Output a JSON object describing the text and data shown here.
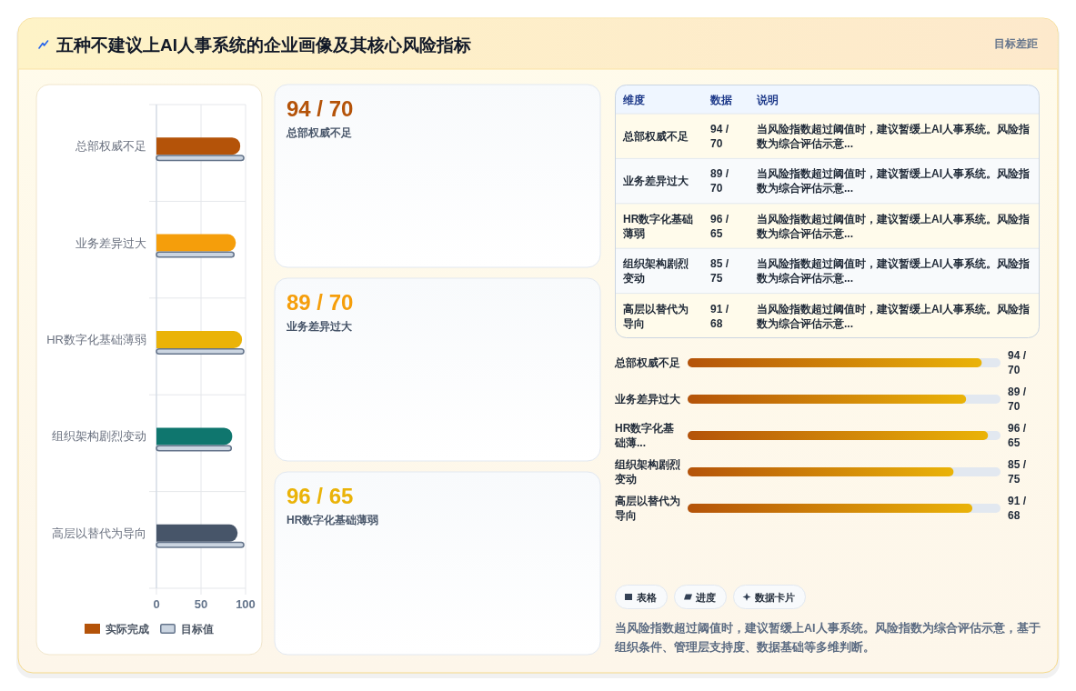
{
  "chart_data": [
    {
      "type": "other",
      "title": "五种不建议上AI人事系统的企业画像及其核心风险指标",
      "subtitle": "目标差距"
    },
    {
      "type": "bar",
      "orientation": "horizontal",
      "categories": [
        "总部权威不足",
        "业务差异过大",
        "HR数字化基础薄弱",
        "组织架构剧烈变动",
        "高层以替代为导向"
      ],
      "series": [
        {
          "name": "实际完成",
          "colors": [
            "#b45309",
            "#f59e0b",
            "#eab308",
            "#0f766e",
            "#475569"
          ],
          "values": [
            94,
            89,
            96,
            85,
            91
          ]
        },
        {
          "name": "目标值",
          "color": "#cbd5e1",
          "values": [
            98,
            87,
            98,
            84,
            98
          ]
        }
      ],
      "xlim": [
        0,
        100
      ],
      "xticks": [
        0,
        50,
        100
      ],
      "grid": true,
      "legend": "bottom"
    },
    {
      "type": "other",
      "categories": [
        "总部权威不足",
        "业务差异过大",
        "HR数字化基础薄弱"
      ],
      "value_labels": [
        "94 / 70",
        "89 / 70",
        "96 / 65"
      ]
    },
    {
      "type": "other",
      "categories": [
        "总部权威不足",
        "业务差异过大",
        "HR数字化基础薄弱",
        "组织架构剧烈变动",
        "高层以替代为导向"
      ],
      "value_labels": [
        "94 / 70",
        "89 / 70",
        "96 / 65",
        "85 / 75",
        "91 / 68"
      ],
      "annotations": [
        "维度",
        "数据",
        "说明",
        "当风险指数超过阈值时，建议暂缓上AI人事系统。风险指数为综合评估示意...",
        "当风险指数超过阈值时，建议暂缓上AI人事系统。风险指数为综合评估示意...",
        "当风险指数超过阈值时，建议暂缓上AI人事系统。风险指数为综合评估示意...",
        "当风险指数超过阈值时，建议暂缓上AI人事系统。风险指数为综合评估示意...",
        "当风险指数超过阈值时，建议暂缓上AI人事系统。风险指数为综合评估示意..."
      ]
    },
    {
      "type": "bar",
      "orientation": "horizontal",
      "categories": [
        "总部权威不足",
        "业务差异过大",
        "HR数字化基础薄...",
        "组织架构剧烈变动",
        "高层以替代为导向"
      ],
      "values": [
        94,
        89,
        96,
        85,
        91
      ],
      "value_labels": [
        "94 / 70",
        "89 / 70",
        "96 / 65",
        "85 / 75",
        "91 / 68"
      ],
      "color": "#b45309",
      "xlim": [
        0,
        100
      ],
      "annotations": [
        "表格",
        "进度",
        "数据卡片",
        "当风险指数超过阈值时，建议暂缓上AI人事系统。风险指数为综合评估示意，基于组织条件、管理层支持度、数据基础等多维判断。"
      ]
    }
  ]
}
